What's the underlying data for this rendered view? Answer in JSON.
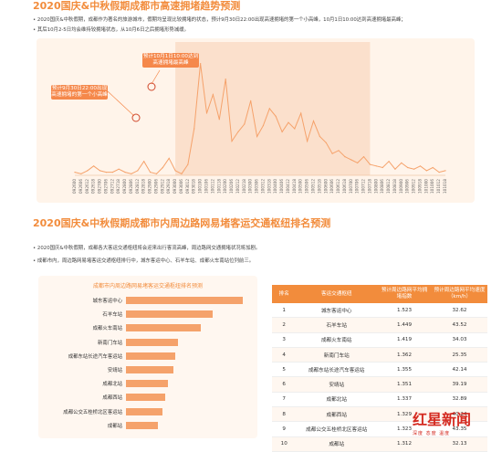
{
  "section1": {
    "title": "2020国庆&中秋假期成都市高速拥堵趋势预测",
    "bullets": [
      "2020国庆&中秋假期，成都作为著名的旅游城市，假期均呈现比较拥堵的状态，预计9月30日22:00出现高速拥堵的第一个小高峰，10月1日10:00达到高速拥堵最高峰；",
      "其后10月2-5日均会维持较拥堵状态，从10月6日之后拥堵形势减缓。"
    ],
    "callout1": "预计9月30日22:00出现高速拥堵的第一个小高峰",
    "callout2": "预计10月1日10:00达到高速拥堵最高峰"
  },
  "chart_data": [
    {
      "type": "line",
      "title": "",
      "x": [
        "092600",
        "092606",
        "092612",
        "092618",
        "092700",
        "092706",
        "092712",
        "092718",
        "092800",
        "092806",
        "092812",
        "092818",
        "092900",
        "092906",
        "092912",
        "092918",
        "093000",
        "093006",
        "093012",
        "093018",
        "100100",
        "100106",
        "100112",
        "100118",
        "100200",
        "100206",
        "100212",
        "100218",
        "100300",
        "100306",
        "100312",
        "100318",
        "100400",
        "100406",
        "100412",
        "100418",
        "100500",
        "100506",
        "100512",
        "100518",
        "100600",
        "100606",
        "100612",
        "100618",
        "100700",
        "100706",
        "100712",
        "100718",
        "100800",
        "100806",
        "100812",
        "100818",
        "100900",
        "100906",
        "100912",
        "100918",
        "101000",
        "101006",
        "101012",
        "101018"
      ],
      "series": [
        {
          "values": [
            2,
            1,
            3,
            6,
            3,
            2,
            2,
            4,
            2,
            1,
            3,
            9,
            2,
            1,
            5,
            11,
            3,
            1,
            7,
            30,
            72,
            40,
            52,
            36,
            62,
            22,
            28,
            33,
            48,
            25,
            32,
            43,
            38,
            28,
            34,
            30,
            40,
            22,
            35,
            25,
            21,
            14,
            16,
            12,
            10,
            8,
            12,
            7,
            6,
            5,
            9,
            4,
            8,
            5,
            4,
            6,
            3,
            5,
            2,
            3
          ]
        }
      ],
      "ylim": [
        0,
        80
      ],
      "highlight_range": [
        "093000",
        "100718"
      ],
      "grid": false
    },
    {
      "type": "bar",
      "title": "成都市内周边路网易堵客运交通枢纽排名预测",
      "categories": [
        "城东客运中心",
        "石羊车站",
        "成都火车南站",
        "新南门车站",
        "成都东站长途汽车客运站",
        "安靖站",
        "成都北站",
        "成都西站",
        "成都公交五桂桥北区客运站",
        "成都站"
      ],
      "values": [
        1.523,
        1.449,
        1.419,
        1.362,
        1.355,
        1.351,
        1.337,
        1.329,
        1.323,
        1.312
      ],
      "horizontal": true
    }
  ],
  "section2": {
    "title": "2020国庆&中秋假期成都市内周边路网易堵客运交通枢纽排名预测",
    "bullets": [
      "2020国庆&中秋假期，成都各大客运交通枢纽将会迎来出行客流高峰，周边路网交通拥堵状况将加剧。",
      "成都市内，周边路网易堵客运交通枢纽排行中，城东客运中心、石羊车站、成都火车南站位列前三。"
    ],
    "bar_panel_title": "成都市内周边路网易堵客运交通枢纽排名预测"
  },
  "table": {
    "headers": [
      "排名",
      "客运交通枢纽",
      "预计周边路网平均拥堵指数",
      "预计周边路网平均速度（km/h）"
    ],
    "rows": [
      [
        "1",
        "城东客运中心",
        "1.523",
        "32.62"
      ],
      [
        "2",
        "石羊车站",
        "1.449",
        "43.52"
      ],
      [
        "3",
        "成都火车南站",
        "1.419",
        "34.03"
      ],
      [
        "4",
        "新南门车站",
        "1.362",
        "25.35"
      ],
      [
        "5",
        "成都东站长途汽车客运站",
        "1.355",
        "42.14"
      ],
      [
        "6",
        "安靖站",
        "1.351",
        "39.19"
      ],
      [
        "7",
        "成都北站",
        "1.337",
        "32.89"
      ],
      [
        "8",
        "成都西站",
        "1.329",
        "40.24"
      ],
      [
        "9",
        "成都公交五桂桥北区客运站",
        "1.323",
        "43.35"
      ],
      [
        "10",
        "成都站",
        "1.312",
        "32.13"
      ]
    ]
  },
  "watermark": {
    "logo": "红星新闻",
    "tagline": "深度 态度 温度"
  },
  "colors": {
    "accent": "#f28c3c",
    "line": "#f5a26b",
    "highlight": "#fbe0cc",
    "callout": "#f5884b",
    "bar": "#f5a26b"
  }
}
